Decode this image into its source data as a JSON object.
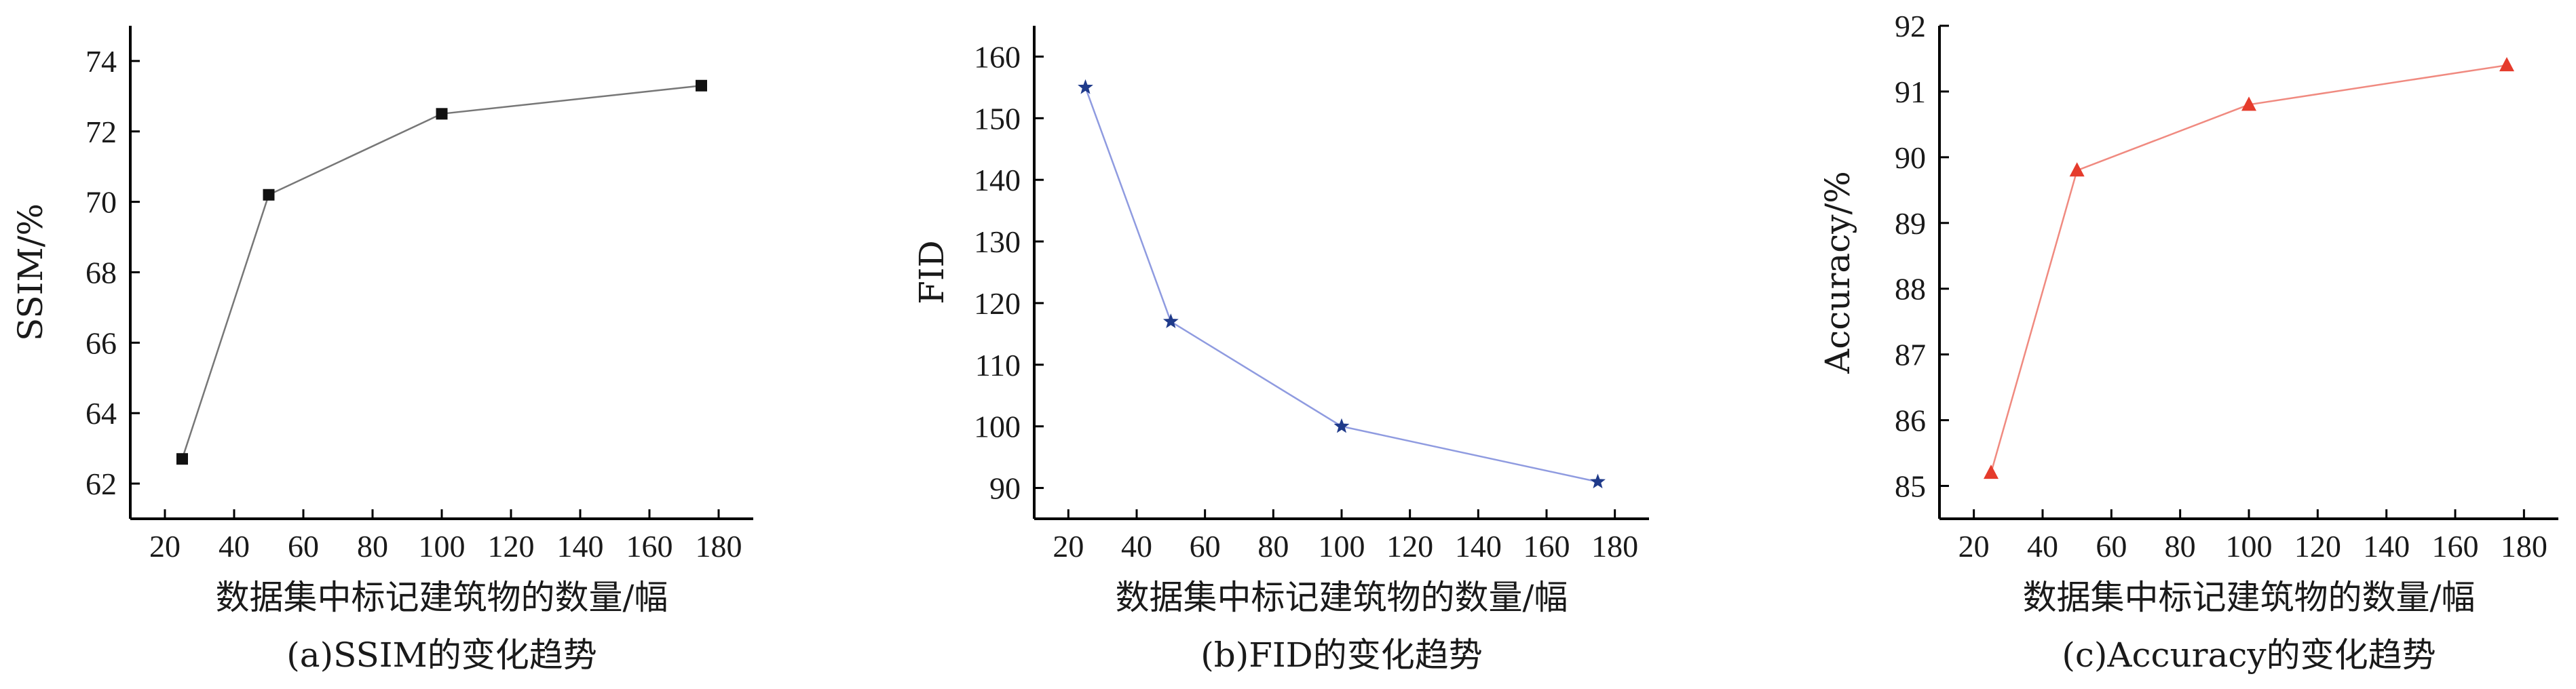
{
  "chart_data": [
    {
      "type": "line",
      "caption": "(a)SSIM的变化趋势",
      "xlabel": "数据集中标记建筑物的数量/幅",
      "ylabel": "SSIM/%",
      "xlim": [
        10,
        190
      ],
      "ylim": [
        61,
        75
      ],
      "xticks": [
        20,
        40,
        60,
        80,
        100,
        120,
        140,
        160,
        180
      ],
      "yticks": [
        62,
        64,
        66,
        68,
        70,
        72,
        74
      ],
      "grid": false,
      "series": [
        {
          "marker": "square",
          "color": "#111111",
          "line_color": "#777777",
          "x": [
            25,
            50,
            100,
            175
          ],
          "y": [
            62.7,
            70.2,
            72.5,
            73.3
          ]
        }
      ]
    },
    {
      "type": "line",
      "caption": "(b)FID的变化趋势",
      "xlabel": "数据集中标记建筑物的数量/幅",
      "ylabel": "FID",
      "xlim": [
        10,
        190
      ],
      "ylim": [
        85,
        165
      ],
      "xticks": [
        20,
        40,
        60,
        80,
        100,
        120,
        140,
        160,
        180
      ],
      "yticks": [
        90,
        100,
        110,
        120,
        130,
        140,
        150,
        160
      ],
      "grid": false,
      "series": [
        {
          "marker": "star",
          "color": "#1f3a8a",
          "line_color": "#8f9be0",
          "x": [
            25,
            50,
            100,
            175
          ],
          "y": [
            155,
            117,
            100,
            91
          ]
        }
      ]
    },
    {
      "type": "line",
      "caption": "(c)Accuracy的变化趋势",
      "xlabel": "数据集中标记建筑物的数量/幅",
      "ylabel": "Accuracy/%",
      "xlim": [
        10,
        190
      ],
      "ylim": [
        84.5,
        92
      ],
      "xticks": [
        20,
        40,
        60,
        80,
        100,
        120,
        140,
        160,
        180
      ],
      "yticks": [
        85,
        86,
        87,
        88,
        89,
        90,
        91,
        92
      ],
      "grid": false,
      "series": [
        {
          "marker": "triangle",
          "color": "#e53b2c",
          "line_color": "#f08a80",
          "x": [
            25,
            50,
            100,
            175
          ],
          "y": [
            85.2,
            89.8,
            90.8,
            91.4
          ]
        }
      ]
    }
  ]
}
